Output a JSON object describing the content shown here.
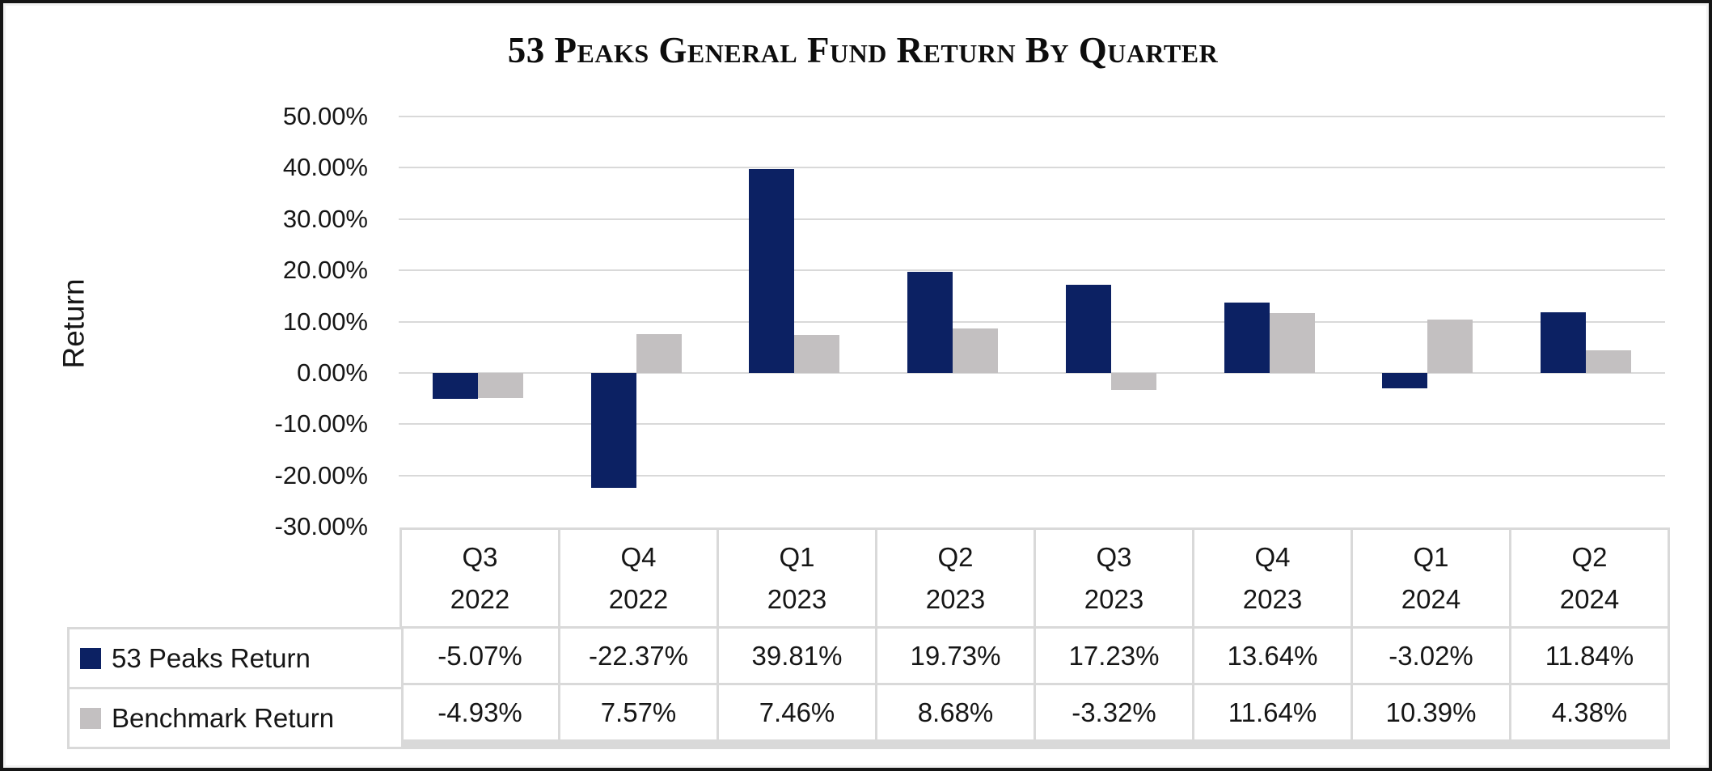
{
  "title": "53 Peaks General Fund Return By Quarter",
  "y_axis": {
    "title": "Return",
    "tick_labels": [
      "50.00%",
      "40.00%",
      "30.00%",
      "20.00%",
      "10.00%",
      "0.00%",
      "-10.00%",
      "-20.00%",
      "-30.00%"
    ]
  },
  "colors": {
    "fund_bar": "#0c2163",
    "benchmark_bar": "#c3c0c1",
    "gridline": "#d9d9d9",
    "table_border": "#d9d9d9",
    "frame": "#151515"
  },
  "chart_data": {
    "type": "bar",
    "title": "53 Peaks General Fund Return By Quarter",
    "ylabel": "Return",
    "ylim": [
      -30,
      50
    ],
    "ytick_step": 10,
    "grid": "horizontal",
    "legend_position": "table-left",
    "categories": [
      {
        "quarter": "Q3",
        "year": "2022"
      },
      {
        "quarter": "Q4",
        "year": "2022"
      },
      {
        "quarter": "Q1",
        "year": "2023"
      },
      {
        "quarter": "Q2",
        "year": "2023"
      },
      {
        "quarter": "Q3",
        "year": "2023"
      },
      {
        "quarter": "Q4",
        "year": "2023"
      },
      {
        "quarter": "Q1",
        "year": "2024"
      },
      {
        "quarter": "Q2",
        "year": "2024"
      }
    ],
    "series": [
      {
        "name": "53 Peaks Return",
        "color": "#0c2163",
        "values": [
          -5.07,
          -22.37,
          39.81,
          19.73,
          17.23,
          13.64,
          -3.02,
          11.84
        ],
        "labels": [
          "-5.07%",
          "-22.37%",
          "39.81%",
          "19.73%",
          "17.23%",
          "13.64%",
          "-3.02%",
          "11.84%"
        ]
      },
      {
        "name": "Benchmark Return",
        "color": "#c3c0c1",
        "values": [
          -4.93,
          7.57,
          7.46,
          8.68,
          -3.32,
          11.64,
          10.39,
          4.38
        ],
        "labels": [
          "-4.93%",
          "7.57%",
          "7.46%",
          "8.68%",
          "-3.32%",
          "11.64%",
          "10.39%",
          "4.38%"
        ]
      }
    ]
  }
}
